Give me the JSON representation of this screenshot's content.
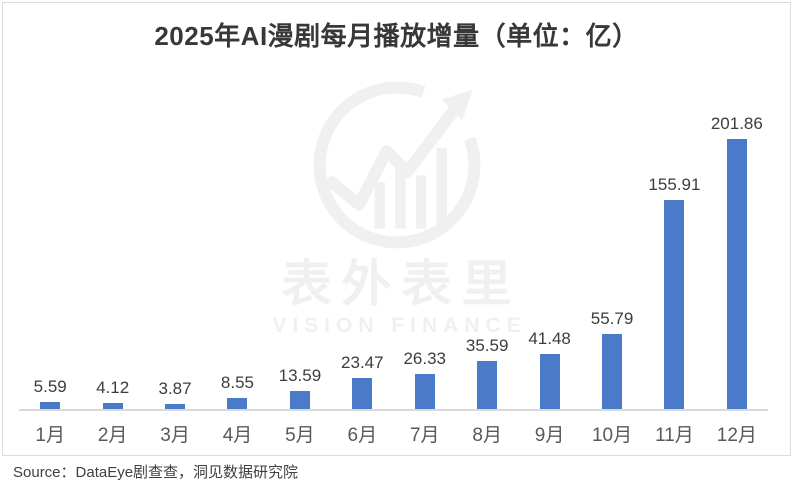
{
  "title": "2025年AI漫剧每月播放增量（单位：亿）",
  "source_note": "Source：DataEye剧查查，洞见数据研究院",
  "watermark": {
    "name": "表外表里",
    "subtitle": "VISION FINANCE"
  },
  "colors": {
    "bar": "#4a7ac8",
    "axis_line": "#d9d9d9",
    "frame_border": "#dcdcdc",
    "title_text": "#383838",
    "value_label": "#3d3d3d",
    "month_label": "#595959",
    "watermark": "#f0f0f0"
  },
  "chart_data": {
    "type": "bar",
    "title": "2025年AI漫剧每月播放增量（单位：亿）",
    "unit": "亿",
    "categories": [
      "1月",
      "2月",
      "3月",
      "4月",
      "5月",
      "6月",
      "7月",
      "8月",
      "9月",
      "10月",
      "11月",
      "12月"
    ],
    "values": [
      5.59,
      4.12,
      3.87,
      8.55,
      13.59,
      23.47,
      26.33,
      35.59,
      41.48,
      55.79,
      155.91,
      201.86
    ],
    "xlabel": "",
    "ylabel": "",
    "ylim": [
      0,
      210
    ],
    "grid": false,
    "legend": false,
    "data_labels": true,
    "bar_color": "#4a7ac8",
    "source": "Source：DataEye剧查查，洞见数据研究院"
  }
}
